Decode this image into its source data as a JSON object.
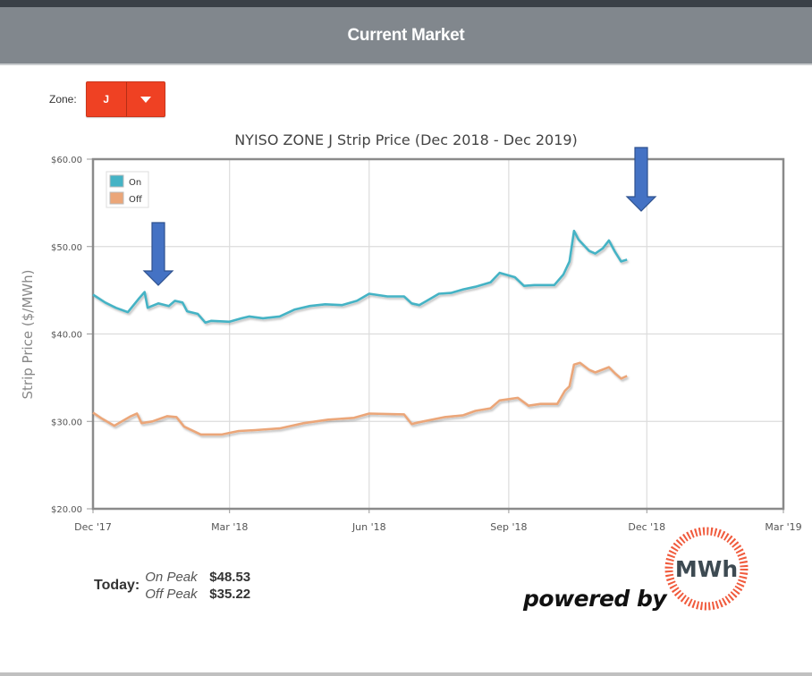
{
  "header": {
    "title": "Current Market"
  },
  "zone": {
    "label": "Zone:",
    "selected": "J"
  },
  "chart_data": {
    "type": "line",
    "title": "NYISO ZONE J Strip Price (Dec 2018 - Dec 2019)",
    "xlabel": "",
    "ylabel": "Strip Price ($/MWh)",
    "ylim": [
      20,
      60
    ],
    "y_ticks": [
      "$20.00",
      "$30.00",
      "$40.00",
      "$50.00",
      "$60.00"
    ],
    "x_ticks": [
      "Dec '17",
      "Mar '18",
      "Jun '18",
      "Sep '18",
      "Dec '18",
      "Mar '19"
    ],
    "grid": true,
    "legend": {
      "position": "top-left-inside",
      "entries": [
        "On",
        "Off"
      ]
    },
    "colors": {
      "On": "#45b3c5",
      "Off": "#eba679"
    },
    "series": [
      {
        "name": "On",
        "points": [
          [
            "2017-12-01",
            44.5
          ],
          [
            "2017-12-09",
            43.6
          ],
          [
            "2017-12-16",
            43.0
          ],
          [
            "2017-12-24",
            42.5
          ],
          [
            "2017-12-31",
            44.0
          ],
          [
            "2018-01-04",
            44.8
          ],
          [
            "2018-01-06",
            43.0
          ],
          [
            "2018-01-13",
            43.5
          ],
          [
            "2018-01-20",
            43.2
          ],
          [
            "2018-01-24",
            43.8
          ],
          [
            "2018-01-29",
            43.6
          ],
          [
            "2018-02-01",
            42.6
          ],
          [
            "2018-02-08",
            42.3
          ],
          [
            "2018-02-13",
            41.3
          ],
          [
            "2018-02-17",
            41.5
          ],
          [
            "2018-03-01",
            41.4
          ],
          [
            "2018-03-09",
            41.8
          ],
          [
            "2018-03-14",
            42.0
          ],
          [
            "2018-03-23",
            41.8
          ],
          [
            "2018-04-03",
            42.0
          ],
          [
            "2018-04-13",
            42.8
          ],
          [
            "2018-04-23",
            43.2
          ],
          [
            "2018-05-03",
            43.4
          ],
          [
            "2018-05-14",
            43.3
          ],
          [
            "2018-05-24",
            43.8
          ],
          [
            "2018-06-01",
            44.6
          ],
          [
            "2018-06-13",
            44.3
          ],
          [
            "2018-06-24",
            44.3
          ],
          [
            "2018-06-29",
            43.5
          ],
          [
            "2018-07-04",
            43.3
          ],
          [
            "2018-07-09",
            43.8
          ],
          [
            "2018-07-17",
            44.6
          ],
          [
            "2018-07-25",
            44.7
          ],
          [
            "2018-08-02",
            45.1
          ],
          [
            "2018-08-10",
            45.4
          ],
          [
            "2018-08-20",
            45.9
          ],
          [
            "2018-08-26",
            47.0
          ],
          [
            "2018-09-05",
            46.5
          ],
          [
            "2018-09-11",
            45.5
          ],
          [
            "2018-09-18",
            45.6
          ],
          [
            "2018-10-01",
            45.6
          ],
          [
            "2018-10-07",
            46.8
          ],
          [
            "2018-10-11",
            48.3
          ],
          [
            "2018-10-14",
            51.8
          ],
          [
            "2018-10-17",
            50.8
          ],
          [
            "2018-10-24",
            49.5
          ],
          [
            "2018-10-28",
            49.2
          ],
          [
            "2018-11-02",
            49.8
          ],
          [
            "2018-11-06",
            50.7
          ],
          [
            "2018-11-10",
            49.4
          ],
          [
            "2018-11-14",
            48.3
          ],
          [
            "2018-11-18",
            48.5
          ]
        ]
      },
      {
        "name": "Off",
        "points": [
          [
            "2017-12-01",
            31.0
          ],
          [
            "2017-12-07",
            30.3
          ],
          [
            "2017-12-15",
            29.5
          ],
          [
            "2017-12-26",
            30.6
          ],
          [
            "2017-12-30",
            30.9
          ],
          [
            "2018-01-02",
            29.8
          ],
          [
            "2018-01-09",
            30.0
          ],
          [
            "2018-01-19",
            30.6
          ],
          [
            "2018-01-25",
            30.5
          ],
          [
            "2018-01-30",
            29.4
          ],
          [
            "2018-02-10",
            28.5
          ],
          [
            "2018-02-24",
            28.5
          ],
          [
            "2018-03-07",
            28.9
          ],
          [
            "2018-03-18",
            29.0
          ],
          [
            "2018-04-03",
            29.2
          ],
          [
            "2018-04-19",
            29.8
          ],
          [
            "2018-05-05",
            30.2
          ],
          [
            "2018-05-22",
            30.4
          ],
          [
            "2018-06-01",
            30.9
          ],
          [
            "2018-06-24",
            30.8
          ],
          [
            "2018-06-29",
            29.7
          ],
          [
            "2018-07-04",
            29.9
          ],
          [
            "2018-07-21",
            30.5
          ],
          [
            "2018-08-02",
            30.7
          ],
          [
            "2018-08-10",
            31.2
          ],
          [
            "2018-08-20",
            31.5
          ],
          [
            "2018-08-26",
            32.4
          ],
          [
            "2018-09-07",
            32.7
          ],
          [
            "2018-09-14",
            31.8
          ],
          [
            "2018-09-22",
            32.0
          ],
          [
            "2018-10-03",
            32.0
          ],
          [
            "2018-10-08",
            33.5
          ],
          [
            "2018-10-11",
            34.0
          ],
          [
            "2018-10-14",
            36.5
          ],
          [
            "2018-10-18",
            36.7
          ],
          [
            "2018-10-24",
            35.9
          ],
          [
            "2018-10-28",
            35.6
          ],
          [
            "2018-11-06",
            36.2
          ],
          [
            "2018-11-10",
            35.5
          ],
          [
            "2018-11-14",
            34.9
          ],
          [
            "2018-11-18",
            35.2
          ]
        ]
      }
    ],
    "annotations": [
      "blue down arrow near Jan '18 (On ~44)",
      "blue down arrow near Dec '18 (On peak ~52)"
    ]
  },
  "today": {
    "label": "Today:",
    "rows": [
      {
        "name": "On Peak",
        "value": "$48.53"
      },
      {
        "name": "Off Peak",
        "value": "$35.22"
      }
    ]
  },
  "branding": {
    "powered_by": "powered by",
    "logo_text": "MWh",
    "logo_color": "#f05a3c"
  }
}
